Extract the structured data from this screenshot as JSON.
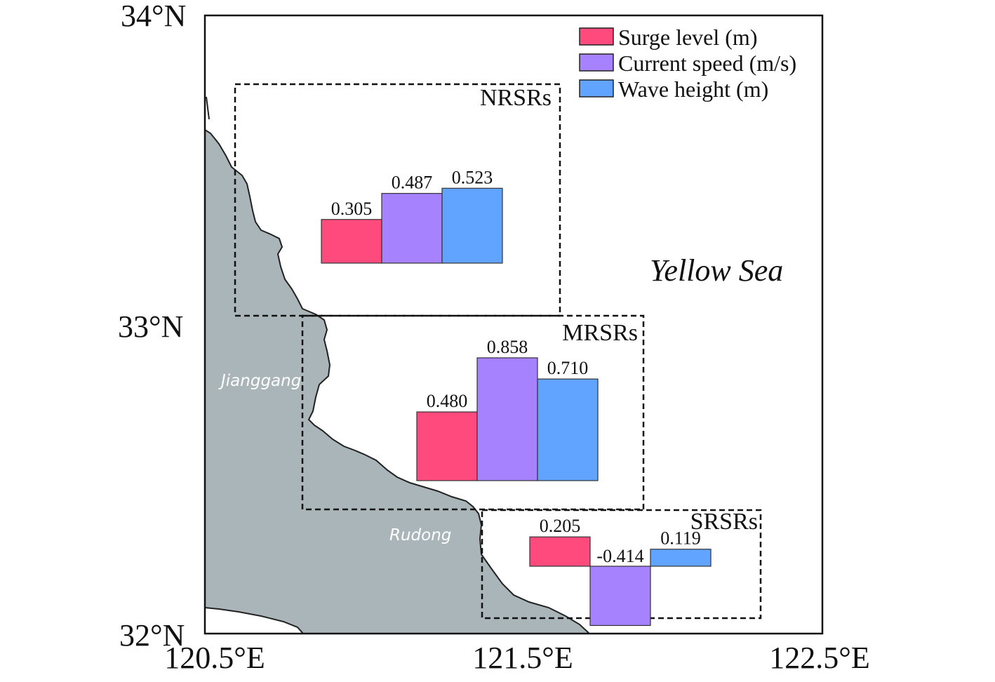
{
  "axes": {
    "y_ticks": [
      "34°N",
      "33°N",
      "32°N"
    ],
    "x_ticks": [
      "120.5°E",
      "121.5°E",
      "122.5°E"
    ]
  },
  "sea_label": "Yellow Sea",
  "places": [
    "Jianggang",
    "Rudong"
  ],
  "legend": [
    {
      "label": "Surge level (m)",
      "color": "#FF4A7D"
    },
    {
      "label": "Current speed (m/s)",
      "color": "#A682FF"
    },
    {
      "label": "Wave height (m)",
      "color": "#61A4FF"
    }
  ],
  "colors": {
    "land": "#A9B5B8",
    "coast": "#222222"
  },
  "chart_data": [
    {
      "type": "bar",
      "title": "NRSRs",
      "categories": [
        "Surge level (m)",
        "Current speed (m/s)",
        "Wave height (m)"
      ],
      "values": [
        0.305,
        0.487,
        0.523
      ],
      "labels": [
        "0.305",
        "0.487",
        "0.523"
      ]
    },
    {
      "type": "bar",
      "title": "MRSRs",
      "categories": [
        "Surge level (m)",
        "Current speed (m/s)",
        "Wave height (m)"
      ],
      "values": [
        0.48,
        0.858,
        0.71
      ],
      "labels": [
        "0.480",
        "0.858",
        "0.710"
      ]
    },
    {
      "type": "bar",
      "title": "SRSRs",
      "categories": [
        "Surge level (m)",
        "Current speed (m/s)",
        "Wave height (m)"
      ],
      "values": [
        0.205,
        -0.414,
        0.119
      ],
      "labels": [
        "0.205",
        "-0.414",
        "0.119"
      ]
    }
  ]
}
